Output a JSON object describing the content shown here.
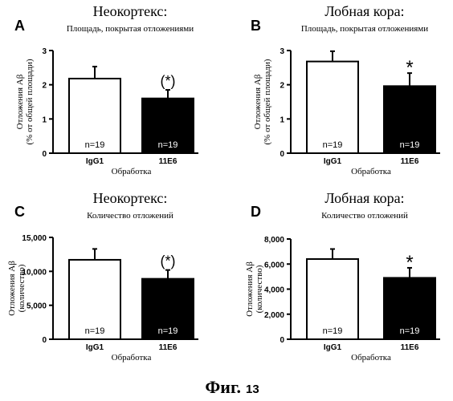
{
  "figure_caption": "Фиг.",
  "figure_number": "13",
  "chart_data": [
    {
      "type": "bar",
      "panel_letter": "A",
      "title": "Неокортекс:",
      "subtitle": "Площадь, покрытая отложениями",
      "ylabel_line1": "Отложения Aβ",
      "ylabel_line2": "(% от общей площади)",
      "xlabel": "Обработка",
      "categories": [
        "IgG1",
        "11E6"
      ],
      "values": [
        2.18,
        1.6
      ],
      "errors": [
        0.35,
        0.25
      ],
      "bar_fills": [
        "#ffffff",
        "#000000"
      ],
      "n_labels": [
        "n=19",
        "n=19"
      ],
      "significance": "(*)",
      "ylim": [
        0,
        3
      ],
      "yticks": [
        0,
        1,
        2,
        3
      ],
      "ytick_labels": [
        "0",
        "1",
        "2",
        "3"
      ]
    },
    {
      "type": "bar",
      "panel_letter": "B",
      "title": "Лобная кора:",
      "subtitle": "Площадь, покрытая отложениями",
      "ylabel_line1": "Отложения Aβ",
      "ylabel_line2": "(% от общей площади)",
      "xlabel": "Обработка",
      "categories": [
        "IgG1",
        "11E6"
      ],
      "values": [
        2.68,
        1.96
      ],
      "errors": [
        0.3,
        0.38
      ],
      "bar_fills": [
        "#ffffff",
        "#000000"
      ],
      "n_labels": [
        "n=19",
        "n=19"
      ],
      "significance": "*",
      "ylim": [
        0,
        3
      ],
      "yticks": [
        0,
        1,
        2,
        3
      ],
      "ytick_labels": [
        "0",
        "1",
        "2",
        "3"
      ]
    },
    {
      "type": "bar",
      "panel_letter": "C",
      "title": "Неокортекс:",
      "subtitle": "Количество отложений",
      "ylabel_line1": "Отложения Aβ",
      "ylabel_line2": "(количество)",
      "xlabel": "Обработка",
      "categories": [
        "IgG1",
        "11E6"
      ],
      "values": [
        11700,
        8900
      ],
      "errors": [
        1600,
        1300
      ],
      "bar_fills": [
        "#ffffff",
        "#000000"
      ],
      "n_labels": [
        "n=19",
        "n=19"
      ],
      "significance": "(*)",
      "ylim": [
        0,
        15000
      ],
      "yticks": [
        0,
        5000,
        10000,
        15000
      ],
      "ytick_labels": [
        "0",
        "5,000",
        "10,000",
        "15,000"
      ]
    },
    {
      "type": "bar",
      "panel_letter": "D",
      "title": "Лобная кора:",
      "subtitle": "Количество отложений",
      "ylabel_line1": "Отложения Aβ",
      "ylabel_line2": "(количество)",
      "xlabel": "Обработка",
      "categories": [
        "IgG1",
        "11E6"
      ],
      "values": [
        6400,
        4900
      ],
      "errors": [
        800,
        800
      ],
      "bar_fills": [
        "#ffffff",
        "#000000"
      ],
      "n_labels": [
        "n=19",
        "n=19"
      ],
      "significance": "*",
      "ylim": [
        0,
        8000
      ],
      "yticks": [
        0,
        2000,
        4000,
        6000,
        8000
      ],
      "ytick_labels": [
        "0",
        "2,000",
        "4,000",
        "6,000",
        "8,000"
      ]
    }
  ]
}
